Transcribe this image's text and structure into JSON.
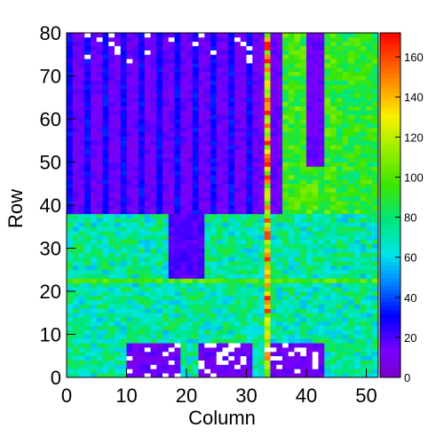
{
  "chart_data": {
    "type": "heatmap",
    "title": "",
    "xlabel": "Column",
    "ylabel": "Row",
    "xlim": [
      0,
      52
    ],
    "ylim": [
      0,
      80
    ],
    "zlim": [
      0,
      172
    ],
    "x_ticks": [
      0,
      10,
      20,
      30,
      40,
      50
    ],
    "y_ticks": [
      0,
      10,
      20,
      30,
      40,
      50,
      60,
      70,
      80
    ],
    "colorbar_ticks": [
      0,
      20,
      40,
      60,
      80,
      100,
      120,
      140,
      160
    ],
    "colorbar_palette": "rainbow (violet to red)",
    "grid": false,
    "regions": [
      {
        "description": "upper half, rows 38-80, columns 0-36: low values with vertical stripes",
        "z_range": [
          0,
          40
        ]
      },
      {
        "description": "upper half, rows 38-80, columns 36-52: mid-high values",
        "z_range": [
          70,
          110
        ]
      },
      {
        "description": "lower half, rows 0-38: mostly mid values",
        "z_range": [
          50,
          90
        ]
      },
      {
        "description": "low block near rows 23-37, columns 17-22",
        "z_range": [
          15,
          30
        ]
      },
      {
        "description": "low pads at bottom, rows 0-7, columns 10-18, 22-30, 33-42",
        "z_range": [
          0,
          25
        ]
      },
      {
        "description": "hot column near column 33",
        "z_range": [
          90,
          170
        ]
      },
      {
        "description": "hot row near row 22",
        "z_range": [
          80,
          120
        ]
      }
    ]
  }
}
